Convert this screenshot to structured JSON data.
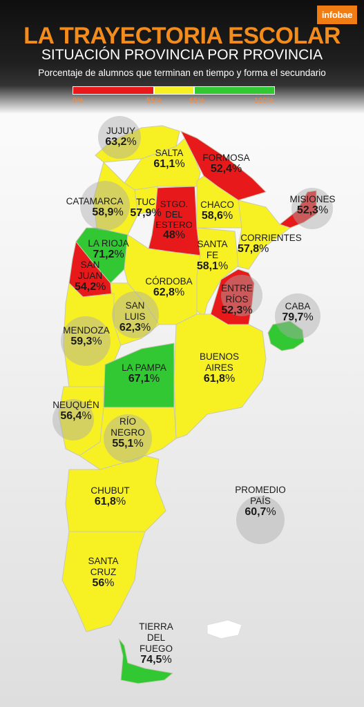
{
  "logo": "infobae",
  "title": "LA TRAYECTORIA ESCOLAR",
  "subtitle": "SITUACIÓN PROVINCIA POR PROVINCIA",
  "description": "Porcentaje de alumnos que terminan en tiempo y forma el secundario",
  "scale": {
    "ticks": [
      "0%",
      "55%",
      "65%",
      "100%"
    ],
    "colors": {
      "low": "#e8191a",
      "mid": "#f7f124",
      "high": "#32c833"
    }
  },
  "provinces": [
    {
      "id": "jujuy",
      "name": "JUJUY",
      "value": "63,2",
      "color": "#f7f124"
    },
    {
      "id": "salta",
      "name": "SALTA",
      "value": "61,1",
      "color": "#f7f124"
    },
    {
      "id": "formosa",
      "name": "FORMOSA",
      "value": "52,4",
      "color": "#e8191a"
    },
    {
      "id": "misiones",
      "name": "MISIONES",
      "value": "52,3",
      "color": "#e8191a"
    },
    {
      "id": "catamarca",
      "name": "CATAMARCA",
      "value": "58,9",
      "color": "#f7f124"
    },
    {
      "id": "tucuman",
      "name": "TUC",
      "value": "57,9",
      "color": "#f7f124"
    },
    {
      "id": "santiago",
      "name": "STGO. DEL ESTERO",
      "value": "48",
      "color": "#e8191a"
    },
    {
      "id": "chaco",
      "name": "CHACO",
      "value": "58,6",
      "color": "#f7f124"
    },
    {
      "id": "corrientes",
      "name": "CORRIENTES",
      "value": "57,8",
      "color": "#f7f124"
    },
    {
      "id": "larioja",
      "name": "LA RIOJA",
      "value": "71,2",
      "color": "#32c833"
    },
    {
      "id": "sanjuan",
      "name": "SAN JUAN",
      "value": "54,2",
      "color": "#e8191a"
    },
    {
      "id": "santafe",
      "name": "SANTA FE",
      "value": "58,1",
      "color": "#f7f124"
    },
    {
      "id": "cordoba",
      "name": "CÓRDOBA",
      "value": "62,8",
      "color": "#f7f124"
    },
    {
      "id": "entrerios",
      "name": "ENTRE RÍOS",
      "value": "52,3",
      "color": "#e8191a"
    },
    {
      "id": "caba",
      "name": "CABA",
      "value": "79,7",
      "color": "#32c833"
    },
    {
      "id": "sanluis",
      "name": "SAN LUIS",
      "value": "62,3",
      "color": "#f7f124"
    },
    {
      "id": "mendoza",
      "name": "MENDOZA",
      "value": "59,3",
      "color": "#f7f124"
    },
    {
      "id": "buenosaires",
      "name": "BUENOS AIRES",
      "value": "61,8",
      "color": "#f7f124"
    },
    {
      "id": "lapampa",
      "name": "LA PAMPA",
      "value": "67,1",
      "color": "#32c833"
    },
    {
      "id": "neuquen",
      "name": "NEUQUÉN",
      "value": "56,4",
      "color": "#f7f124"
    },
    {
      "id": "rionegro",
      "name": "RÍO NEGRO",
      "value": "55,1",
      "color": "#f7f124"
    },
    {
      "id": "chubut",
      "name": "CHUBUT",
      "value": "61,8",
      "color": "#f7f124"
    },
    {
      "id": "santacruz",
      "name": "SANTA CRUZ",
      "value": "56",
      "color": "#f7f124"
    },
    {
      "id": "tierradelfuego",
      "name": "TIERRA DEL FUEGO",
      "value": "74,5",
      "color": "#32c833"
    }
  ],
  "average": {
    "name": "PROMEDIO PAÍS",
    "value": "60,7"
  },
  "percent_sign": "%"
}
